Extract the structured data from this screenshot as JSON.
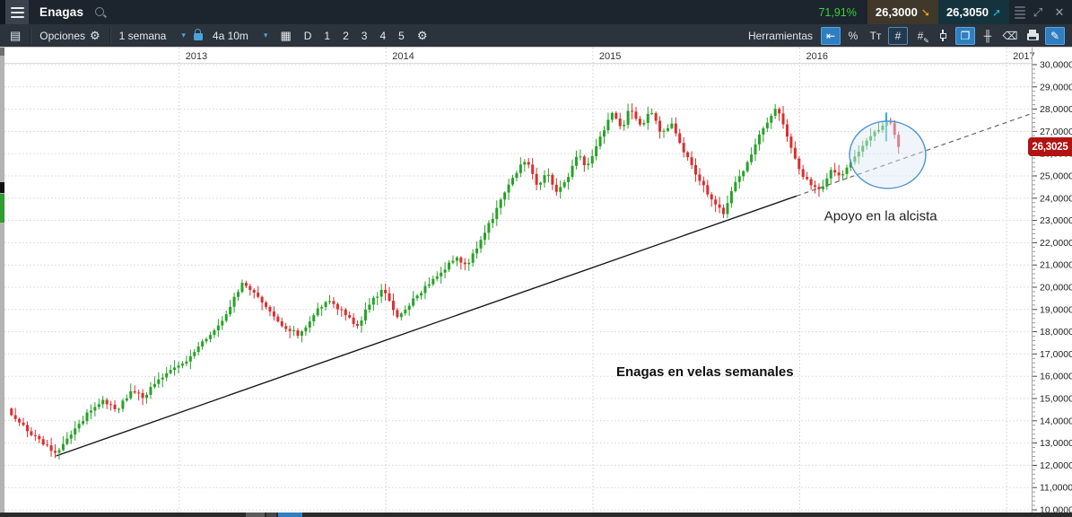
{
  "titlebar": {
    "symbol": "Enagas",
    "change_pct": "71,91%",
    "bid": "26,3000",
    "ask": "26,3050",
    "bid_arrow": "➘",
    "ask_arrow": "➚",
    "expand_glyph": "⤢",
    "close_glyph": "✕"
  },
  "toolbar": {
    "panel_list_glyph": "▤",
    "options_label": "Opciones",
    "gear_glyph": "⚙",
    "timeframe": "1 semana",
    "range": "4a 10m",
    "calendar_glyph": "▦",
    "layout_buttons": [
      "D",
      "1",
      "2",
      "3",
      "4",
      "5"
    ],
    "tools_label": "Herramientas",
    "tools": [
      {
        "name": "snap-back-icon",
        "glyph": "⇤",
        "state": "active"
      },
      {
        "name": "percent-scale-icon",
        "glyph": "%",
        "state": "normal"
      },
      {
        "name": "text-size-icon",
        "glyph": "Tт",
        "state": "normal"
      },
      {
        "name": "grid-icon",
        "glyph": "#",
        "state": "pressed"
      },
      {
        "name": "grid-edit-icon",
        "glyph": "#",
        "overlay": "✎",
        "state": "normal"
      },
      {
        "name": "candlestick-style-icon",
        "special": "candle",
        "state": "normal"
      },
      {
        "name": "detach-window-icon",
        "glyph": "❐",
        "state": "active"
      },
      {
        "name": "indicator-icon",
        "glyph": "╫",
        "state": "normal"
      },
      {
        "name": "eraser-icon",
        "glyph": "⌫",
        "state": "normal"
      },
      {
        "name": "print-icon",
        "special": "printer",
        "state": "normal"
      },
      {
        "name": "draw-color-icon",
        "glyph": "✎",
        "state": "active"
      }
    ]
  },
  "chart": {
    "last_price_label": "26,3025"
  },
  "colors": {
    "candle_up": "#27a227",
    "candle_down": "#d92e2e",
    "accent_blue": "#2e7fc1",
    "pct_green": "#3ecf3e",
    "price_tag_bg": "#b11313",
    "ellipse_stroke": "#4f93d2",
    "ellipse_fill": "#dce9f6"
  },
  "chart_data": {
    "type": "candlestick",
    "symbol": "Enagas",
    "timeframe": "1 semana",
    "title": "Enagas en velas semanales",
    "x_years": [
      2013,
      2014,
      2015,
      2016,
      2017
    ],
    "ylim": [
      10,
      30
    ],
    "y_tick_step": 1,
    "y_tick_labels": [
      "30,0000",
      "29,0000",
      "28,0000",
      "27,0000",
      "26,0000",
      "25,0000",
      "24,0000",
      "23,0000",
      "22,0000",
      "21,0000",
      "20,0000",
      "19,0000",
      "18,0000",
      "17,0000",
      "16,0000",
      "15,0000",
      "14,0000",
      "13,0000",
      "12,0000",
      "11,0000",
      "10,0000"
    ],
    "last_price": 26.3025,
    "anchors": [
      [
        2012.17,
        14.55
      ],
      [
        2012.23,
        13.9
      ],
      [
        2012.31,
        13.2
      ],
      [
        2012.41,
        12.55
      ],
      [
        2012.48,
        13.4
      ],
      [
        2012.56,
        14.35
      ],
      [
        2012.63,
        14.9
      ],
      [
        2012.7,
        14.5
      ],
      [
        2012.77,
        15.35
      ],
      [
        2012.83,
        15.05
      ],
      [
        2012.89,
        15.8
      ],
      [
        2012.96,
        16.3
      ],
      [
        2013.03,
        16.6
      ],
      [
        2013.11,
        17.5
      ],
      [
        2013.19,
        18.2
      ],
      [
        2013.25,
        19.2
      ],
      [
        2013.31,
        20.3
      ],
      [
        2013.37,
        19.6
      ],
      [
        2013.44,
        18.9
      ],
      [
        2013.51,
        18.2
      ],
      [
        2013.58,
        17.85
      ],
      [
        2013.66,
        18.9
      ],
      [
        2013.72,
        19.4
      ],
      [
        2013.79,
        18.9
      ],
      [
        2013.86,
        18.2
      ],
      [
        2013.92,
        19.3
      ],
      [
        2013.99,
        19.9
      ],
      [
        2014.05,
        18.7
      ],
      [
        2014.12,
        19.3
      ],
      [
        2014.18,
        19.9
      ],
      [
        2014.26,
        20.6
      ],
      [
        2014.34,
        21.4
      ],
      [
        2014.39,
        20.9
      ],
      [
        2014.45,
        22.0
      ],
      [
        2014.52,
        23.2
      ],
      [
        2014.58,
        24.4
      ],
      [
        2014.64,
        25.3
      ],
      [
        2014.68,
        25.8
      ],
      [
        2014.73,
        24.6
      ],
      [
        2014.78,
        25.1
      ],
      [
        2014.83,
        24.2
      ],
      [
        2014.88,
        25.0
      ],
      [
        2014.93,
        26.1
      ],
      [
        2014.97,
        25.3
      ],
      [
        2015.03,
        26.6
      ],
      [
        2015.09,
        27.9
      ],
      [
        2015.14,
        27.1
      ],
      [
        2015.18,
        28.1
      ],
      [
        2015.23,
        27.2
      ],
      [
        2015.28,
        27.9
      ],
      [
        2015.33,
        26.9
      ],
      [
        2015.38,
        27.3
      ],
      [
        2015.43,
        26.3
      ],
      [
        2015.48,
        25.4
      ],
      [
        2015.53,
        24.6
      ],
      [
        2015.58,
        23.9
      ],
      [
        2015.63,
        23.3
      ],
      [
        2015.68,
        24.6
      ],
      [
        2015.73,
        25.2
      ],
      [
        2015.78,
        26.3
      ],
      [
        2015.83,
        27.3
      ],
      [
        2015.89,
        28.1
      ],
      [
        2015.93,
        27.0
      ],
      [
        2015.97,
        25.9
      ],
      [
        2016.01,
        25.1
      ],
      [
        2016.06,
        24.6
      ],
      [
        2016.11,
        24.4
      ],
      [
        2016.15,
        25.3
      ],
      [
        2016.2,
        24.9
      ],
      [
        2016.25,
        25.6
      ],
      [
        2016.3,
        26.3
      ],
      [
        2016.35,
        26.9
      ],
      [
        2016.4,
        27.3
      ],
      [
        2016.43,
        27.55
      ],
      [
        2016.46,
        26.9
      ],
      [
        2016.48,
        26.3
      ]
    ],
    "trendline": {
      "solid_from": [
        2012.405,
        12.42
      ],
      "solid_to": [
        2015.985,
        24.1
      ],
      "dashed_to": [
        2017.12,
        27.8
      ]
    },
    "ellipse": {
      "t": 2016.425,
      "price": 25.95,
      "rx_years": 0.184,
      "ry_price": 1.51
    },
    "marker_line": {
      "t": 2016.418,
      "price_top": 27.85,
      "price_bottom": 26.55,
      "color": "#25b0c9"
    },
    "annotations": [
      {
        "text": "Apoyo en la alcista",
        "t": 2016.118,
        "price": 23.0,
        "bold": false,
        "size": 15
      },
      {
        "text": "Enagas en velas semanales",
        "t": 2015.113,
        "price": 16.0,
        "bold": true,
        "size": 15
      }
    ]
  }
}
